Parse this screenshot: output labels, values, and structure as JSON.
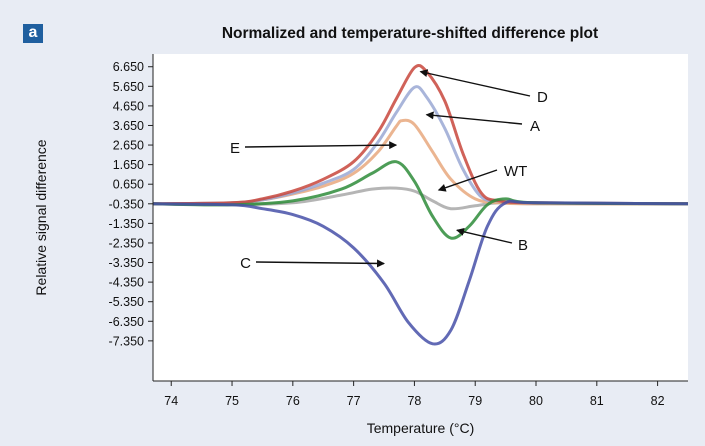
{
  "panel_label": "a",
  "chart_data": {
    "type": "line",
    "title": "Normalized and temperature-shifted difference plot",
    "xlabel": "Temperature (°C)",
    "ylabel": "Relative signal difference",
    "xlim": [
      73.7,
      82.5
    ],
    "ylim": [
      -9.4,
      7.3
    ],
    "x_ticks": [
      74,
      75,
      76,
      77,
      78,
      79,
      80,
      81,
      82
    ],
    "y_ticks": [
      6.65,
      5.65,
      4.65,
      3.65,
      2.65,
      1.65,
      0.65,
      -0.35,
      -1.35,
      -2.35,
      -3.35,
      -4.35,
      -5.35,
      -6.35,
      -7.35
    ],
    "y_tick_labels": [
      "6.650",
      "5.650",
      "4.650",
      "3.650",
      "2.650",
      "1.650",
      "0.650",
      "-0.350",
      "-1.350",
      "-2.350",
      "-3.350",
      "-4.350",
      "-5.350",
      "-6.350",
      "-7.350"
    ],
    "grid": false,
    "colors": {
      "D": "#c8473c",
      "A": "#9aa8d4",
      "E": "#e8a87e",
      "WT": "#a8a8a8",
      "B": "#2e8c3a",
      "C": "#4650a8"
    },
    "series": [
      {
        "name": "D",
        "color": "#c8473c",
        "x": [
          73.7,
          75.0,
          75.5,
          76.0,
          76.5,
          77.0,
          77.4,
          77.7,
          78.0,
          78.2,
          78.5,
          78.8,
          79.1,
          79.4,
          80.0,
          82.5
        ],
        "y": [
          -0.35,
          -0.3,
          -0.1,
          0.3,
          0.9,
          1.8,
          3.3,
          5.0,
          6.6,
          6.4,
          4.9,
          2.2,
          0.2,
          -0.2,
          -0.3,
          -0.35
        ]
      },
      {
        "name": "A",
        "color": "#9aa8d4",
        "x": [
          73.7,
          75.0,
          75.5,
          76.0,
          76.5,
          77.0,
          77.4,
          77.7,
          78.0,
          78.2,
          78.5,
          78.8,
          79.1,
          79.4,
          80.0,
          82.5
        ],
        "y": [
          -0.35,
          -0.3,
          -0.15,
          0.2,
          0.7,
          1.4,
          2.8,
          4.3,
          5.6,
          5.1,
          3.5,
          1.4,
          0.0,
          -0.2,
          -0.3,
          -0.35
        ]
      },
      {
        "name": "E",
        "color": "#e8a87e",
        "x": [
          73.7,
          75.0,
          75.5,
          76.0,
          76.5,
          77.0,
          77.4,
          77.7,
          77.8,
          78.0,
          78.3,
          78.6,
          79.0,
          79.4,
          80.0,
          82.5
        ],
        "y": [
          -0.35,
          -0.3,
          -0.15,
          0.15,
          0.55,
          1.2,
          2.3,
          3.6,
          3.9,
          3.7,
          2.3,
          0.9,
          -0.1,
          -0.3,
          -0.35,
          -0.35
        ]
      },
      {
        "name": "WT",
        "color": "#a8a8a8",
        "x": [
          73.7,
          75.0,
          76.0,
          76.8,
          77.3,
          77.7,
          78.0,
          78.3,
          78.6,
          79.0,
          79.4,
          80.0,
          82.5
        ],
        "y": [
          -0.35,
          -0.4,
          -0.3,
          0.1,
          0.4,
          0.45,
          0.3,
          -0.2,
          -0.6,
          -0.45,
          -0.3,
          -0.35,
          -0.35
        ]
      },
      {
        "name": "B",
        "color": "#2e8c3a",
        "x": [
          73.7,
          75.0,
          76.0,
          76.8,
          77.3,
          77.7,
          78.0,
          78.3,
          78.6,
          78.9,
          79.2,
          79.5,
          80.0,
          82.5
        ],
        "y": [
          -0.35,
          -0.4,
          -0.2,
          0.4,
          1.2,
          1.8,
          0.8,
          -1.0,
          -2.1,
          -1.5,
          -0.4,
          -0.1,
          -0.3,
          -0.35
        ]
      },
      {
        "name": "C",
        "color": "#4650a8",
        "x": [
          73.7,
          75.0,
          75.5,
          76.0,
          76.5,
          77.0,
          77.5,
          77.9,
          78.3,
          78.6,
          78.9,
          79.2,
          79.5,
          80.0,
          82.5
        ],
        "y": [
          -0.35,
          -0.4,
          -0.6,
          -0.9,
          -1.5,
          -2.6,
          -4.4,
          -6.4,
          -7.5,
          -6.8,
          -4.3,
          -1.5,
          -0.3,
          -0.3,
          -0.35
        ]
      }
    ],
    "annotations": [
      {
        "label": "D",
        "x": 78.1,
        "y": 6.4
      },
      {
        "label": "A",
        "x": 78.2,
        "y": 4.2
      },
      {
        "label": "E",
        "x": 77.7,
        "y": 2.65
      },
      {
        "label": "WT",
        "x": 78.4,
        "y": 0.35
      },
      {
        "label": "B",
        "x": 78.7,
        "y": -1.7
      },
      {
        "label": "C",
        "x": 77.5,
        "y": -3.4
      }
    ]
  }
}
